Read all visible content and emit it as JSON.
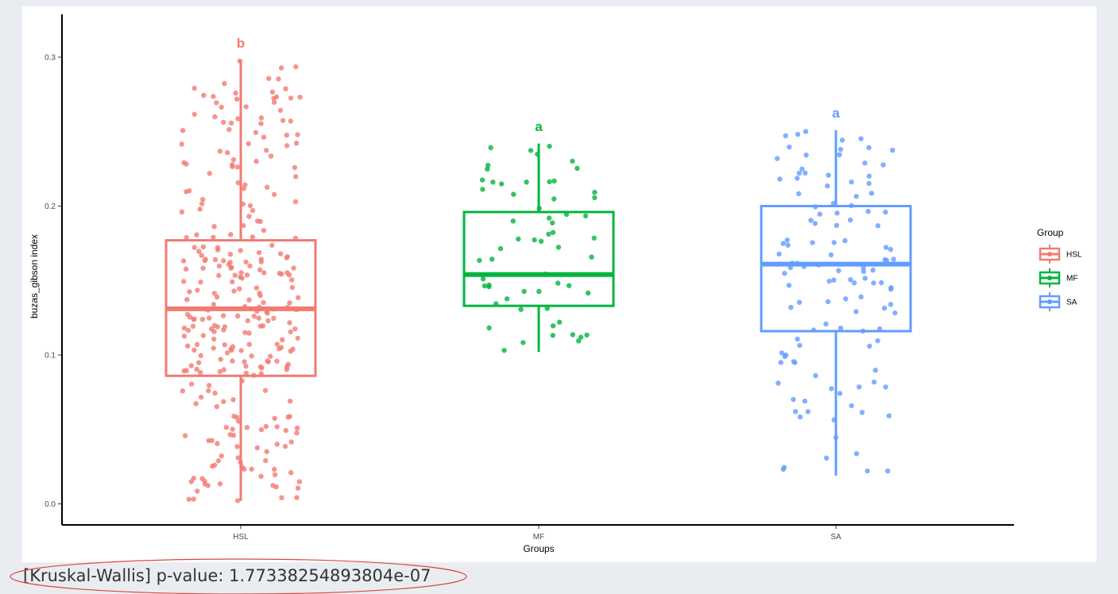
{
  "chart_data": {
    "type": "boxplot",
    "xlabel": "Groups",
    "ylabel": "buzas_gibson index",
    "categories": [
      "HSL",
      "MF",
      "SA"
    ],
    "ylim": [
      -0.014,
      0.328
    ],
    "yticks": [
      "0.0",
      "0.1",
      "0.2",
      "0.3"
    ],
    "ytick_values": [
      0.0,
      0.1,
      0.2,
      0.3
    ],
    "grid": false,
    "legend": {
      "title": "Group",
      "position": "right",
      "entries": [
        "HSL",
        "MF",
        "SA"
      ]
    },
    "colors": {
      "HSL": "#f17b72",
      "MF": "#00b53f",
      "SA": "#619cff"
    },
    "groups": [
      {
        "name": "HSL",
        "min": 0.002,
        "q1": 0.086,
        "median": 0.131,
        "q3": 0.177,
        "max": 0.298,
        "letter": "b",
        "n_points": 300
      },
      {
        "name": "MF",
        "min": 0.102,
        "q1": 0.133,
        "median": 0.154,
        "q3": 0.196,
        "max": 0.242,
        "letter": "a",
        "n_points": 60
      },
      {
        "name": "SA",
        "min": 0.019,
        "q1": 0.116,
        "median": 0.161,
        "q3": 0.2,
        "max": 0.251,
        "letter": "a",
        "n_points": 120
      }
    ]
  },
  "footer": {
    "pvalue_text": "[Kruskal-Wallis] p-value: 1.77338254893804e-07",
    "highlight_color": "#e0443c"
  }
}
